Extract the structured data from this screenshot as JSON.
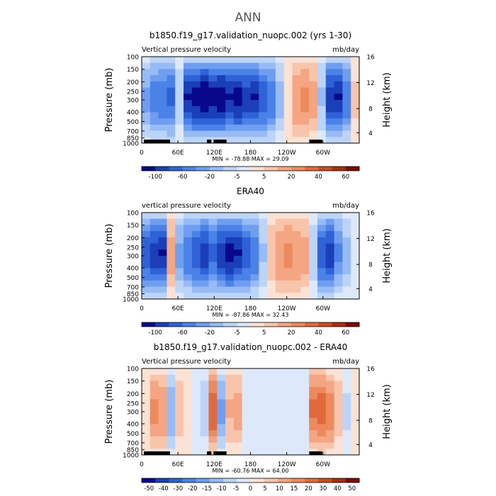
{
  "figure_title": "ANN",
  "chart_data": [
    {
      "type": "heatmap",
      "title": "b1850.f19_g17.validation_nuopc.002 (yrs 1-30)",
      "left_label": "Vertical pressure velocity",
      "right_label": "mb/day",
      "ylabel": "Pressure (mb)",
      "ylabel_right": "Height (km)",
      "x_ticks": [
        "0",
        "60E",
        "120E",
        "180",
        "120W",
        "60W"
      ],
      "y_ticks": [
        "100",
        "150",
        "200",
        "250",
        "300",
        "400",
        "500",
        "700",
        "850",
        "1000"
      ],
      "height_ticks": [
        "16",
        "12",
        "8",
        "4"
      ],
      "stats": "MIN = -78.88   MAX =  29.09",
      "colorbar_labels": [
        "-100",
        "-60",
        "-20",
        "-5",
        "5",
        "20",
        "40",
        "60"
      ],
      "colorbar_colors": [
        "#08088a",
        "#1a3fb8",
        "#2f62d6",
        "#4a82e8",
        "#6f9ef0",
        "#97bbf5",
        "#bcd4f8",
        "#dde9fb",
        "#fbe2d5",
        "#f8c5ab",
        "#f4a582",
        "#ec8a5e",
        "#e06a3c",
        "#cc4a22",
        "#ad2a12",
        "#7a0a05"
      ],
      "longitude_profile": [
        -40,
        -55,
        -60,
        -65,
        -20,
        -85,
        -90,
        -95,
        -90,
        -92,
        -85,
        -88,
        -80,
        -85,
        -70,
        -60,
        -30,
        10,
        35,
        40,
        30,
        -25,
        -80,
        -85,
        -60,
        15
      ],
      "land_segments": [
        [
          0.01,
          0.12
        ],
        [
          0.08,
          0.13
        ],
        [
          0.3,
          0.32
        ],
        [
          0.33,
          0.39
        ],
        [
          0.77,
          0.83
        ]
      ]
    },
    {
      "type": "heatmap",
      "title": "ERA40",
      "left_label": "vertical pressure velocity",
      "right_label": "mb/day",
      "ylabel": "Pressure (mb)",
      "ylabel_right": "Height (km)",
      "x_ticks": [
        "0",
        "60E",
        "120E",
        "180",
        "120W",
        "60W"
      ],
      "y_ticks": [
        "100",
        "150",
        "200",
        "250",
        "300",
        "400",
        "500",
        "700",
        "850",
        "1000"
      ],
      "height_ticks": [
        "16",
        "12",
        "8",
        "4"
      ],
      "stats": "MIN = -87.86   MAX =  32.43",
      "colorbar_labels": [
        "-100",
        "-60",
        "-20",
        "-5",
        "5",
        "20",
        "40",
        "60"
      ],
      "colorbar_colors": [
        "#08088a",
        "#1a3fb8",
        "#2f62d6",
        "#4a82e8",
        "#6f9ef0",
        "#97bbf5",
        "#bcd4f8",
        "#dde9fb",
        "#fbe2d5",
        "#f8c5ab",
        "#f4a582",
        "#ec8a5e",
        "#e06a3c",
        "#cc4a22",
        "#ad2a12",
        "#7a0a05"
      ],
      "longitude_profile": [
        -70,
        -80,
        -85,
        30,
        -40,
        -60,
        -70,
        -80,
        -65,
        -80,
        -90,
        -85,
        -70,
        -60,
        -25,
        20,
        35,
        40,
        35,
        30,
        -20,
        -70,
        -80,
        -50,
        -30,
        -10
      ],
      "land_segments": []
    },
    {
      "type": "heatmap",
      "title": "b1850.f19_g17.validation_nuopc.002 - ERA40",
      "left_label": "Vertical pressure velocity",
      "right_label": "mb/day",
      "ylabel": "Pressure (mb)",
      "ylabel_right": "Height (km)",
      "x_ticks": [
        "0",
        "60E",
        "120E",
        "180",
        "120W",
        "60W"
      ],
      "y_ticks": [
        "100",
        "150",
        "200",
        "250",
        "300",
        "400",
        "500",
        "700",
        "850",
        "1000"
      ],
      "height_ticks": [
        "16",
        "12",
        "8",
        "4"
      ],
      "stats": "MIN = -60.76   MAX =  64.00",
      "colorbar_labels": [
        "-50",
        "-40",
        "-30",
        "-20",
        "-15",
        "-10",
        "-5",
        "0",
        "5",
        "10",
        "15",
        "20",
        "30",
        "40",
        "50"
      ],
      "colorbar_colors": [
        "#08088a",
        "#1a3fb8",
        "#2f62d6",
        "#4a82e8",
        "#6f9ef0",
        "#97bbf5",
        "#bcd4f8",
        "#dde9fb",
        "#fbe2d5",
        "#f8c5ab",
        "#f4a582",
        "#ec8a5e",
        "#e06a3c",
        "#cc4a22",
        "#ad2a12",
        "#7a0a05"
      ],
      "longitude_profile": [
        10,
        40,
        35,
        -35,
        20,
        5,
        -10,
        -20,
        60,
        -40,
        25,
        30,
        -10,
        -5,
        -10,
        -5,
        -10,
        -5,
        -10,
        -5,
        50,
        55,
        45,
        20,
        -15,
        10
      ],
      "land_segments": [
        [
          0.01,
          0.12
        ],
        [
          0.08,
          0.13
        ],
        [
          0.3,
          0.32
        ],
        [
          0.33,
          0.39
        ],
        [
          0.77,
          0.83
        ]
      ]
    }
  ]
}
